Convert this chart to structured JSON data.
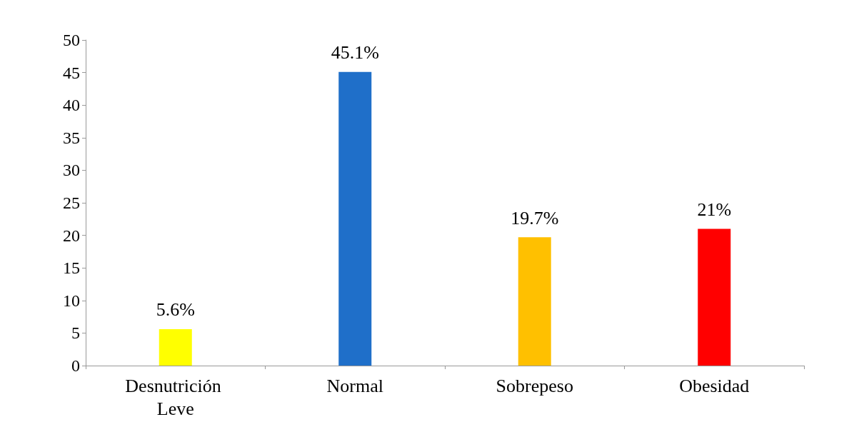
{
  "chart_data": {
    "type": "bar",
    "categories": [
      "Desnutrición Leve",
      "Normal",
      "Sobrepeso",
      "Obesidad"
    ],
    "values": [
      5.6,
      45.1,
      19.7,
      21
    ],
    "colors": [
      "#ffff00",
      "#1f6fc9",
      "#ffc000",
      "#ff0000"
    ],
    "value_labels": [
      "5.6%",
      "45.1%",
      "19.7%",
      "21%"
    ],
    "ylim": [
      0,
      50
    ],
    "yticks": [
      0,
      5,
      10,
      15,
      20,
      25,
      30,
      35,
      40,
      45,
      50
    ],
    "grid": false
  }
}
